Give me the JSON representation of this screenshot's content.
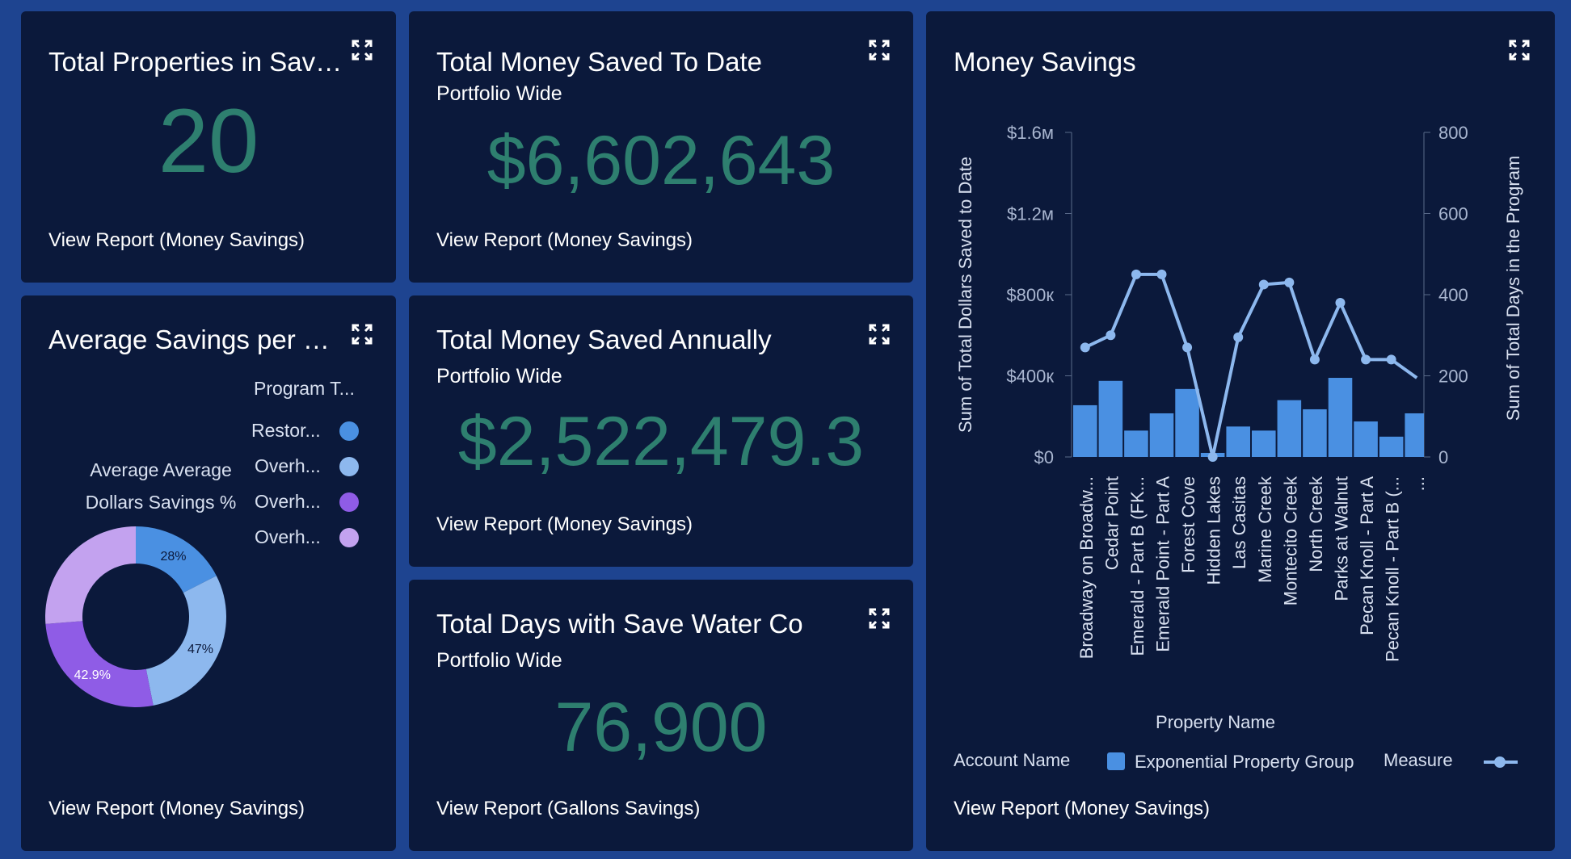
{
  "cards": {
    "properties": {
      "title": "Total Properties in Sav…",
      "value": "20",
      "link": "View Report (Money Savings)"
    },
    "saved_to_date": {
      "title": "Total Money Saved To Date",
      "subtitle": "Portfolio Wide",
      "value": "$6,602,643",
      "link": "View Report (Money Savings)"
    },
    "avg_savings": {
      "title": "Average Savings per …",
      "legend_title": "Program T...",
      "legend": [
        {
          "label": "Restor...",
          "color": "#4a90e2"
        },
        {
          "label": "Overh...",
          "color": "#8db8ee"
        },
        {
          "label": "Overh...",
          "color": "#8f5ce6"
        },
        {
          "label": "Overh...",
          "color": "#c3a2ef"
        }
      ],
      "center_line1": "Average Average",
      "center_line2": "Dollars Savings %",
      "link": "View Report (Money Savings)"
    },
    "saved_annually": {
      "title": "Total Money Saved Annually",
      "subtitle": "Portfolio Wide",
      "value": "$2,522,479.3",
      "link": "View Report (Money Savings)"
    },
    "days": {
      "title": "Total Days with Save Water Co",
      "subtitle": "Portfolio Wide",
      "value": "76,900",
      "link": "View Report (Gallons Savings)"
    },
    "money_savings": {
      "title": "Money Savings",
      "x_title": "Property Name",
      "legend_account_label": "Account Name",
      "legend_account_value": "Exponential Property Group",
      "legend_measure_label": "Measure",
      "link": "View Report (Money Savings)"
    }
  },
  "donut_data": {
    "type": "pie",
    "slices": [
      {
        "label": "28%",
        "value": 28,
        "color": "#4a90e2"
      },
      {
        "label": "47%",
        "value": 47,
        "color": "#8db8ee"
      },
      {
        "label": "42.9%",
        "value": 42.9,
        "color": "#8f5ce6"
      },
      {
        "label": "",
        "value": 42,
        "color": "#c3a2ef"
      }
    ]
  },
  "chart_data": {
    "type": "bar",
    "title": "Money Savings",
    "xlabel": "Property Name",
    "ylabel": "Sum of Total Dollars Saved to Date",
    "y2label": "Sum of Total Days in the Program",
    "ylim": [
      0,
      1600000
    ],
    "y2lim": [
      0,
      800
    ],
    "y_ticks": [
      {
        "value": 0,
        "label": "$0"
      },
      {
        "value": 400000,
        "label": "$400к"
      },
      {
        "value": 800000,
        "label": "$800к"
      },
      {
        "value": 1200000,
        "label": "$1.2м"
      },
      {
        "value": 1600000,
        "label": "$1.6м"
      }
    ],
    "y2_ticks": [
      {
        "value": 0,
        "label": "0"
      },
      {
        "value": 200,
        "label": "200"
      },
      {
        "value": 400,
        "label": "400"
      },
      {
        "value": 600,
        "label": "600"
      },
      {
        "value": 800,
        "label": "800"
      }
    ],
    "categories": [
      "Broadway on Broadw...",
      "Cedar Point",
      "Emerald - Part B (FK...",
      "Emerald Point - Part A",
      "Forest Cove",
      "Hidden Lakes",
      "Las Casitas",
      "Marine Creek",
      "Montecito Creek",
      "North Creek",
      "Parks at Walnut",
      "Pecan Knoll - Part A",
      "Pecan Knoll - Part B (...",
      "..."
    ],
    "series": [
      {
        "name": "Exponential Property Group",
        "kind": "bar",
        "axis": "left",
        "color": "#4a90e2",
        "values": [
          255000,
          375000,
          130000,
          215000,
          335000,
          20000,
          150000,
          130000,
          280000,
          235000,
          390000,
          175000,
          100000,
          215000
        ]
      },
      {
        "name": "Sum of Total Days in the Program",
        "kind": "line",
        "axis": "right",
        "color": "#8db8ee",
        "values": [
          270,
          300,
          450,
          450,
          270,
          0,
          295,
          425,
          430,
          240,
          380,
          240,
          240,
          195
        ]
      }
    ]
  }
}
